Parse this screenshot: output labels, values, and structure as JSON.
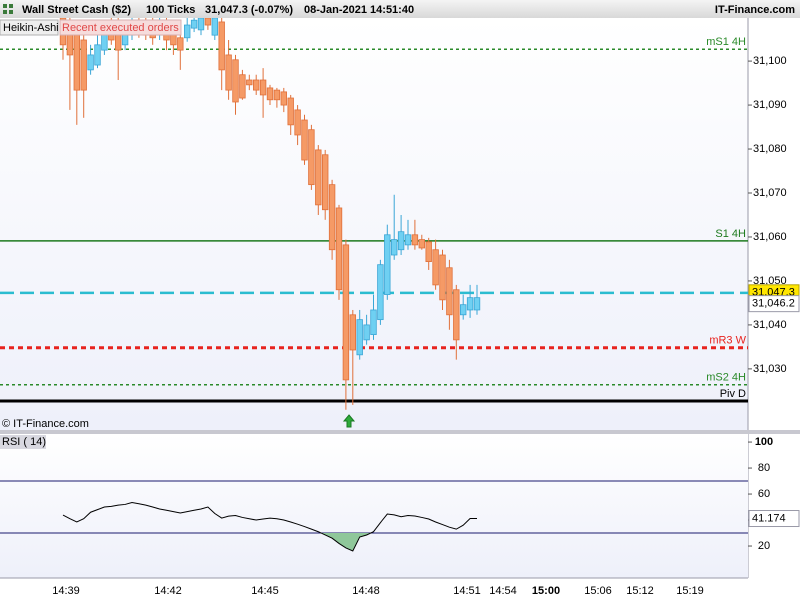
{
  "chart_data": [
    {
      "type": "candlestick",
      "title": "Wall Street Cash ($2)",
      "interval": "100 Ticks",
      "quote": "31,047.3 (-0.07%)",
      "timestamp": "08-Jan-2021 14:51:40",
      "brand": "IT-Finance.com",
      "candle_label": "Heikin-Ashi",
      "orders_label": "Recent executed orders",
      "watermark": "© IT-Finance.com",
      "up_color": "#6fd0f2",
      "down_color": "#f59a66",
      "open": [
        31109.8,
        31107.1,
        31105.9,
        31104.8,
        31098.0,
        31099.1,
        31102.5,
        31108.2,
        31107.1,
        31103.7,
        31105.9,
        31108.9,
        31108.2,
        31107.5,
        31105.9,
        31107.5,
        31106.6,
        31105.3,
        31105.3,
        31107.5,
        31107.1,
        31109.8,
        31105.9,
        31108.9,
        31101.4,
        31100.3,
        31096.9,
        31095.7,
        31095.7,
        31095.7,
        31093.9,
        31093.4,
        31093.0,
        31091.6,
        31088.9,
        31086.6,
        31084.4,
        31079.8,
        31078.7,
        31071.9,
        31066.6,
        31058.2,
        31042.3,
        31033.2,
        31036.6,
        31037.8,
        31041.2,
        31046.9,
        31055.9,
        31057.1,
        31058.2,
        31060.5,
        31059.4,
        31058.9,
        31057.1,
        31055.9,
        31053.0,
        31048.0,
        31042.3,
        31043.4,
        31043.4
      ],
      "high": [
        31109.8,
        31109.8,
        31108.2,
        31108.2,
        31103.7,
        31105.9,
        31109.3,
        31109.8,
        31109.8,
        31109.3,
        31109.8,
        31109.8,
        31109.8,
        31109.8,
        31109.8,
        31109.8,
        31108.9,
        31108.2,
        31109.8,
        31109.8,
        31109.8,
        31109.8,
        31109.8,
        31109.8,
        31104.8,
        31101.4,
        31098.0,
        31096.9,
        31096.9,
        31098.4,
        31094.6,
        31093.9,
        31093.9,
        31092.3,
        31090.0,
        31087.8,
        31085.5,
        31080.9,
        31079.8,
        31073.0,
        31067.3,
        31059.4,
        31043.4,
        31043.4,
        31042.3,
        31046.9,
        31054.8,
        31062.8,
        31069.6,
        31065.0,
        31063.9,
        31063.9,
        31060.5,
        31059.8,
        31059.4,
        31057.1,
        31054.8,
        31049.1,
        31046.9,
        31049.1,
        31049.1
      ],
      "low": [
        31100.3,
        31088.9,
        31085.5,
        31087.1,
        31096.9,
        31098.4,
        31101.4,
        31103.7,
        31095.7,
        31102.5,
        31104.8,
        31105.3,
        31104.8,
        31103.7,
        31104.8,
        31102.5,
        31101.4,
        31098.0,
        31104.4,
        31106.6,
        31105.9,
        31107.1,
        31104.8,
        31093.4,
        31091.2,
        31087.8,
        31091.2,
        31093.4,
        31092.3,
        31087.1,
        31090.0,
        31089.4,
        31088.4,
        31083.2,
        31080.9,
        31076.4,
        31070.7,
        31065.0,
        31063.9,
        31054.8,
        31045.7,
        31020.7,
        31021.8,
        31032.1,
        31035.5,
        31036.6,
        31040.0,
        31045.7,
        31054.8,
        31055.9,
        31057.1,
        31057.1,
        31057.1,
        31052.5,
        31048.0,
        31043.4,
        31038.9,
        31032.1,
        31041.2,
        31041.6,
        31042.3
      ],
      "close": [
        31103.7,
        31101.4,
        31093.4,
        31093.4,
        31101.4,
        31103.7,
        31107.1,
        31104.8,
        31102.5,
        31107.1,
        31108.9,
        31106.6,
        31105.9,
        31105.3,
        31108.2,
        31104.8,
        31103.7,
        31102.5,
        31108.2,
        31109.3,
        31109.8,
        31108.2,
        31109.8,
        31098.0,
        31093.4,
        31090.7,
        31091.6,
        31094.6,
        31093.4,
        31092.3,
        31091.2,
        31091.2,
        31090.0,
        31085.5,
        31083.2,
        31077.5,
        31071.9,
        31067.3,
        31066.2,
        31057.1,
        31048.0,
        31027.5,
        31034.3,
        31041.2,
        31040.0,
        31043.4,
        31053.7,
        31060.5,
        31059.4,
        31061.2,
        31060.5,
        31058.2,
        31057.5,
        31054.4,
        31049.1,
        31045.7,
        31042.3,
        31036.6,
        31044.6,
        31046.2,
        31046.2
      ],
      "ylim": [
        31016.1,
        31109.8
      ],
      "yticks": [
        {
          "value": 31030,
          "label": "31,030"
        },
        {
          "value": 31040,
          "label": "31,040"
        },
        {
          "value": 31050,
          "label": "31,050"
        },
        {
          "value": 31060,
          "label": "31,060"
        },
        {
          "value": 31070,
          "label": "31,070"
        },
        {
          "value": 31080,
          "label": "31,080"
        },
        {
          "value": 31090,
          "label": "31,090"
        },
        {
          "value": 31100,
          "label": "31,100"
        }
      ],
      "levels": [
        {
          "label": "mS1 4H",
          "value": 31102.7,
          "color": "#2a8a2a",
          "style": "dotted"
        },
        {
          "label": "S1 4H",
          "value": 31059.1,
          "color": "#1e7a1e",
          "style": "solid"
        },
        {
          "label": "mR3 W",
          "value": 31034.8,
          "color": "#e8231e",
          "style": "bold-dotted"
        },
        {
          "label": "mS2 4H",
          "value": 31026.4,
          "color": "#2a8a2a",
          "style": "dotted"
        },
        {
          "label": "Piv D",
          "value": 31022.7,
          "color": "#000000",
          "style": "bold-solid"
        }
      ],
      "last_price": {
        "value": 31047.3,
        "label": "31,047.3",
        "color": "#2bbcd0"
      },
      "bid_price": {
        "value": 31046.2,
        "label": "31,046.2"
      },
      "time_labels": [
        "14:39",
        "14:42",
        "14:45",
        "14:48",
        "14:51",
        "14:54",
        "15:00",
        "15:06",
        "15:12",
        "15:19"
      ]
    },
    {
      "type": "line",
      "title": "RSI ( 14)",
      "color": "#000000",
      "values": [
        43.8,
        41,
        38.5,
        41,
        46,
        48,
        50,
        50.5,
        51.5,
        52,
        53.5,
        52.5,
        51.5,
        50,
        48.5,
        47.5,
        46.5,
        45.4,
        46.5,
        47.5,
        48.5,
        50,
        45,
        41.5,
        43,
        43.5,
        42,
        41,
        40,
        40.8,
        41.5,
        41,
        40,
        38.5,
        36.8,
        35,
        33,
        31,
        28.5,
        26,
        22,
        18.5,
        16.2,
        26.9,
        28.5,
        31,
        38,
        44.6,
        44,
        42.5,
        43.5,
        43.1,
        42,
        40.8,
        38.5,
        36.5,
        34.5,
        33,
        36,
        41.2,
        41.174
      ],
      "ylim": [
        -4.6,
        106.2
      ],
      "yticks": [
        20,
        40,
        60,
        80,
        100
      ],
      "bands": [
        30,
        70
      ],
      "band_color": "#1a1a6e",
      "oversold_fill": "#8fc79a"
    }
  ]
}
